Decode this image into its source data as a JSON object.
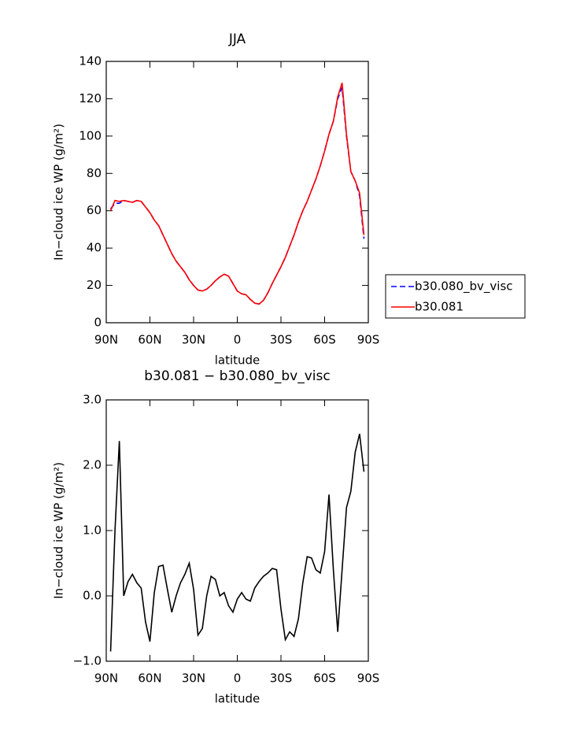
{
  "chart_data": [
    {
      "type": "line",
      "title": "JJA",
      "xlabel": "latitude",
      "ylabel": "In−cloud ice WP (g/m²)",
      "x": [
        87,
        84,
        81,
        78,
        75,
        72,
        69,
        66,
        63,
        60,
        57,
        54,
        51,
        48,
        45,
        42,
        39,
        36,
        33,
        30,
        27,
        24,
        21,
        18,
        15,
        12,
        9,
        6,
        3,
        0,
        -3,
        -6,
        -9,
        -12,
        -15,
        -18,
        -21,
        -24,
        -27,
        -30,
        -33,
        -36,
        -39,
        -42,
        -45,
        -48,
        -51,
        -54,
        -57,
        -60,
        -63,
        -66,
        -69,
        -72,
        -75,
        -78,
        -81,
        -84,
        -87
      ],
      "series": [
        {
          "name": "b30.080_bv_visc",
          "color": "#0000ff",
          "line_style": "dashed",
          "values": [
            61,
            64,
            64,
            65.5,
            65,
            64.5,
            65.5,
            65,
            62,
            59,
            55,
            52,
            47,
            42,
            37,
            33,
            30,
            27,
            23,
            20,
            17.5,
            17,
            18,
            20,
            22.5,
            24.5,
            26,
            25,
            21,
            17,
            15.5,
            15,
            12.5,
            10.5,
            10,
            12,
            16,
            21,
            25.5,
            30,
            35,
            41,
            47,
            54,
            60,
            65,
            71,
            77,
            84,
            92,
            101,
            108,
            120,
            126,
            100,
            81,
            76,
            68,
            45
          ]
        },
        {
          "name": "b30.081",
          "color": "#ff0000",
          "line_style": "solid",
          "values": [
            60,
            65.5,
            65,
            65.5,
            65,
            64.5,
            65.5,
            65,
            62,
            59,
            55,
            52,
            47,
            42,
            37,
            33,
            30,
            27,
            23,
            20,
            17.5,
            17,
            18,
            20,
            22.5,
            24.5,
            26,
            25,
            21,
            17,
            15.5,
            15,
            12.5,
            10.5,
            10,
            12,
            16,
            21,
            25.5,
            30,
            35,
            41,
            47,
            54,
            60,
            65,
            71,
            77,
            84,
            92,
            101,
            108,
            121,
            128.5,
            101,
            81,
            76,
            69.5,
            47
          ]
        }
      ],
      "xlim": [
        90,
        -90
      ],
      "xticks": [
        {
          "value": 90,
          "label": "90N"
        },
        {
          "value": 60,
          "label": "60N"
        },
        {
          "value": 30,
          "label": "30N"
        },
        0,
        {
          "value": -30,
          "label": "30S"
        },
        {
          "value": -60,
          "label": "60S"
        },
        {
          "value": -90,
          "label": "90S"
        }
      ],
      "ylim": [
        0,
        140
      ],
      "yticks": [
        0,
        20,
        40,
        60,
        80,
        100,
        120,
        140
      ],
      "legend": "right"
    },
    {
      "type": "line",
      "title": "b30.081 − b30.080_bv_visc",
      "xlabel": "latitude",
      "ylabel": "In−cloud ice WP (g/m²)",
      "x": [
        87,
        84,
        81,
        78,
        75,
        72,
        69,
        66,
        63,
        60,
        57,
        54,
        51,
        48,
        45,
        42,
        39,
        36,
        33,
        30,
        27,
        24,
        21,
        18,
        15,
        12,
        9,
        6,
        3,
        0,
        -3,
        -6,
        -9,
        -12,
        -15,
        -18,
        -21,
        -24,
        -27,
        -30,
        -33,
        -36,
        -39,
        -42,
        -45,
        -48,
        -51,
        -54,
        -57,
        -60,
        -63,
        -66,
        -69,
        -72,
        -75,
        -78,
        -81,
        -84,
        -87
      ],
      "series": [
        {
          "color": "#000000",
          "line_style": "solid",
          "values": [
            -0.85,
            1.0,
            2.37,
            0.0,
            0.22,
            0.33,
            0.2,
            0.12,
            -0.4,
            -0.7,
            0.05,
            0.45,
            0.47,
            0.1,
            -0.25,
            0.0,
            0.2,
            0.33,
            0.5,
            0.1,
            -0.6,
            -0.5,
            0.0,
            0.3,
            0.25,
            0.0,
            0.05,
            -0.15,
            -0.25,
            -0.05,
            0.05,
            -0.05,
            -0.08,
            0.12,
            0.22,
            0.3,
            0.35,
            0.42,
            0.4,
            -0.2,
            -0.67,
            -0.55,
            -0.62,
            -0.35,
            0.2,
            0.6,
            0.58,
            0.4,
            0.35,
            0.68,
            1.55,
            0.4,
            -0.55,
            0.4,
            1.35,
            1.6,
            2.2,
            2.48,
            1.9
          ]
        }
      ],
      "xlim": [
        90,
        -90
      ],
      "xticks": [
        {
          "value": 90,
          "label": "90N"
        },
        {
          "value": 60,
          "label": "60N"
        },
        {
          "value": 30,
          "label": "30N"
        },
        0,
        {
          "value": -30,
          "label": "30S"
        },
        {
          "value": -60,
          "label": "60S"
        },
        {
          "value": -90,
          "label": "90S"
        }
      ],
      "ylim": [
        -1,
        3
      ],
      "yticks": [
        {
          "value": -1,
          "label": "−1.0"
        },
        {
          "value": 0,
          "label": "0.0"
        },
        {
          "value": 1,
          "label": "1.0"
        },
        {
          "value": 2,
          "label": "2.0"
        },
        {
          "value": 3,
          "label": "3.0"
        }
      ]
    }
  ]
}
